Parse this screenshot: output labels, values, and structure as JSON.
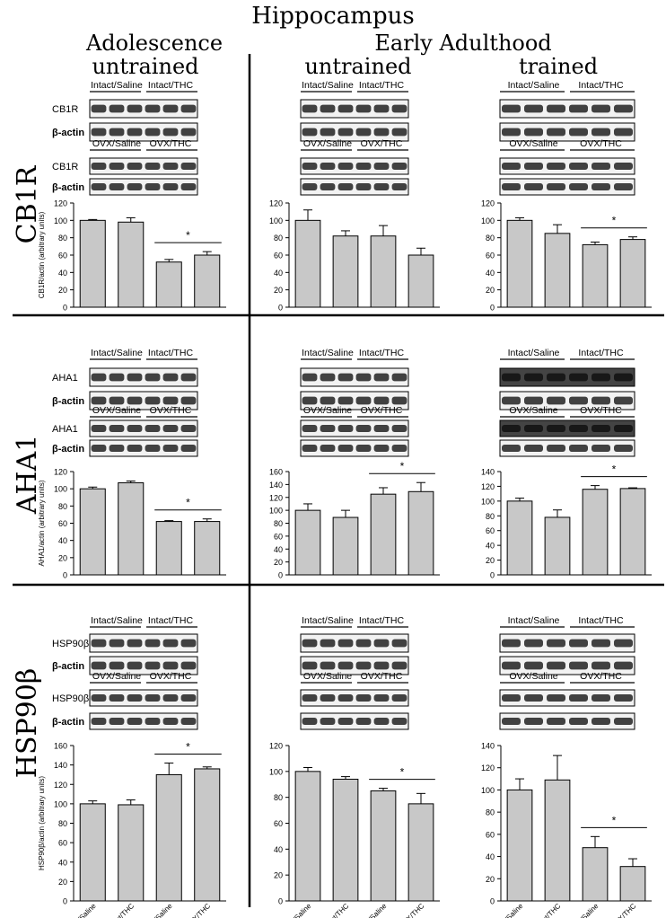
{
  "figure": {
    "title": "Hippocampus",
    "header_adolescence": "Adolescence",
    "header_early_adulthood": "Early Adulthood",
    "col_labels": [
      "untrained",
      "untrained",
      "trained"
    ],
    "row_labels": [
      "CB1R",
      "AHA1",
      "HSP90β"
    ],
    "x_categories": [
      "Intact/Saline",
      "Intact/THC",
      "OVX/Saline",
      "OVX/THC"
    ],
    "significance_marker": "*"
  },
  "blots": {
    "rows": [
      {
        "protein": "CB1R",
        "loading": "β-actin",
        "groups_top": [
          "Intact/Saline",
          "Intact/THC"
        ],
        "groups_bottom": [
          "OVX/Saline",
          "OVX/THC"
        ]
      },
      {
        "protein": "AHA1",
        "loading": "β-actin",
        "groups_top": [
          "Intact/Saline",
          "Intact/THC"
        ],
        "groups_bottom": [
          "OVX/Saline",
          "OVX/THC"
        ]
      },
      {
        "protein": "HSP90β",
        "loading": "β-actin",
        "groups_top": [
          "Intact/Saline",
          "Intact/THC"
        ],
        "groups_bottom": [
          "OVX/Saline",
          "OVX/THC"
        ]
      }
    ]
  },
  "chart_data": [
    {
      "type": "bar",
      "row": "CB1R",
      "column": "Adolescence untrained",
      "ylabel": "CB1R/actin (arbitrary units)",
      "ylim": [
        0,
        120
      ],
      "yticks": [
        0,
        20,
        40,
        60,
        80,
        100,
        120
      ],
      "categories": [
        "Intact/Saline",
        "Intact/THC",
        "OVX/Saline",
        "OVX/THC"
      ],
      "values": [
        100,
        98,
        52,
        60
      ],
      "errors": [
        1,
        5,
        3,
        4
      ],
      "sig_bracket": [
        2,
        3
      ]
    },
    {
      "type": "bar",
      "row": "CB1R",
      "column": "Early Adulthood untrained",
      "ylabel": "",
      "ylim": [
        0,
        120
      ],
      "yticks": [
        0,
        20,
        40,
        60,
        80,
        100,
        120
      ],
      "categories": [
        "Intact/Saline",
        "Intact/THC",
        "OVX/Saline",
        "OVX/THC"
      ],
      "values": [
        100,
        82,
        82,
        60
      ],
      "errors": [
        12,
        6,
        12,
        8
      ],
      "sig_bracket": null
    },
    {
      "type": "bar",
      "row": "CB1R",
      "column": "Early Adulthood trained",
      "ylabel": "",
      "ylim": [
        0,
        120
      ],
      "yticks": [
        0,
        20,
        40,
        60,
        80,
        100,
        120
      ],
      "categories": [
        "Intact/Saline",
        "Intact/THC",
        "OVX/Saline",
        "OVX/THC"
      ],
      "values": [
        100,
        85,
        72,
        78
      ],
      "errors": [
        3,
        10,
        3,
        3
      ],
      "sig_bracket": [
        2,
        3
      ]
    },
    {
      "type": "bar",
      "row": "AHA1",
      "column": "Adolescence untrained",
      "ylabel": "AHA1/actin (arbitrary units)",
      "ylim": [
        0,
        120
      ],
      "yticks": [
        0,
        20,
        40,
        60,
        80,
        100,
        120
      ],
      "categories": [
        "Intact/Saline",
        "Intact/THC",
        "OVX/Saline",
        "OVX/THC"
      ],
      "values": [
        100,
        107,
        62,
        62
      ],
      "errors": [
        2,
        2,
        1,
        3
      ],
      "sig_bracket": [
        2,
        3
      ]
    },
    {
      "type": "bar",
      "row": "AHA1",
      "column": "Early Adulthood untrained",
      "ylabel": "",
      "ylim": [
        0,
        160
      ],
      "yticks": [
        0,
        20,
        40,
        60,
        80,
        100,
        120,
        140,
        160
      ],
      "categories": [
        "Intact/Saline",
        "Intact/THC",
        "OVX/Saline",
        "OVX/THC"
      ],
      "values": [
        100,
        89,
        125,
        129
      ],
      "errors": [
        10,
        11,
        10,
        14
      ],
      "sig_bracket": [
        2,
        3
      ]
    },
    {
      "type": "bar",
      "row": "AHA1",
      "column": "Early Adulthood trained",
      "ylabel": "",
      "ylim": [
        0,
        140
      ],
      "yticks": [
        0,
        20,
        40,
        60,
        80,
        100,
        120,
        140
      ],
      "categories": [
        "Intact/Saline",
        "Intact/THC",
        "OVX/Saline",
        "OVX/THC"
      ],
      "values": [
        100,
        78,
        116,
        117
      ],
      "errors": [
        4,
        10,
        5,
        1
      ],
      "sig_bracket": [
        2,
        3
      ]
    },
    {
      "type": "bar",
      "row": "HSP90β",
      "column": "Adolescence untrained",
      "ylabel": "HSP90β/actin (arbitrary units)",
      "ylim": [
        0,
        160
      ],
      "yticks": [
        0,
        20,
        40,
        60,
        80,
        100,
        120,
        140,
        160
      ],
      "categories": [
        "Intact/Saline",
        "Intact/THC",
        "OVX/Saline",
        "OVX/THC"
      ],
      "values": [
        100,
        99,
        130,
        136
      ],
      "errors": [
        3,
        5,
        12,
        2
      ],
      "sig_bracket": [
        2,
        3
      ]
    },
    {
      "type": "bar",
      "row": "HSP90β",
      "column": "Early Adulthood untrained",
      "ylabel": "",
      "ylim": [
        0,
        120
      ],
      "yticks": [
        0,
        20,
        40,
        60,
        80,
        100,
        120
      ],
      "categories": [
        "Intact/Saline",
        "Intact/THC",
        "OVX/Saline",
        "OVX/THC"
      ],
      "values": [
        100,
        94,
        85,
        75
      ],
      "errors": [
        3,
        2,
        2,
        8
      ],
      "sig_bracket": [
        2,
        3
      ]
    },
    {
      "type": "bar",
      "row": "HSP90β",
      "column": "Early Adulthood trained",
      "ylabel": "",
      "ylim": [
        0,
        140
      ],
      "yticks": [
        0,
        20,
        40,
        60,
        80,
        100,
        120,
        140
      ],
      "categories": [
        "Intact/Saline",
        "Intact/THC",
        "OVX/Saline",
        "OVX/THC"
      ],
      "values": [
        100,
        109,
        48,
        31
      ],
      "errors": [
        10,
        22,
        10,
        7
      ],
      "sig_bracket": [
        2,
        3
      ]
    }
  ]
}
